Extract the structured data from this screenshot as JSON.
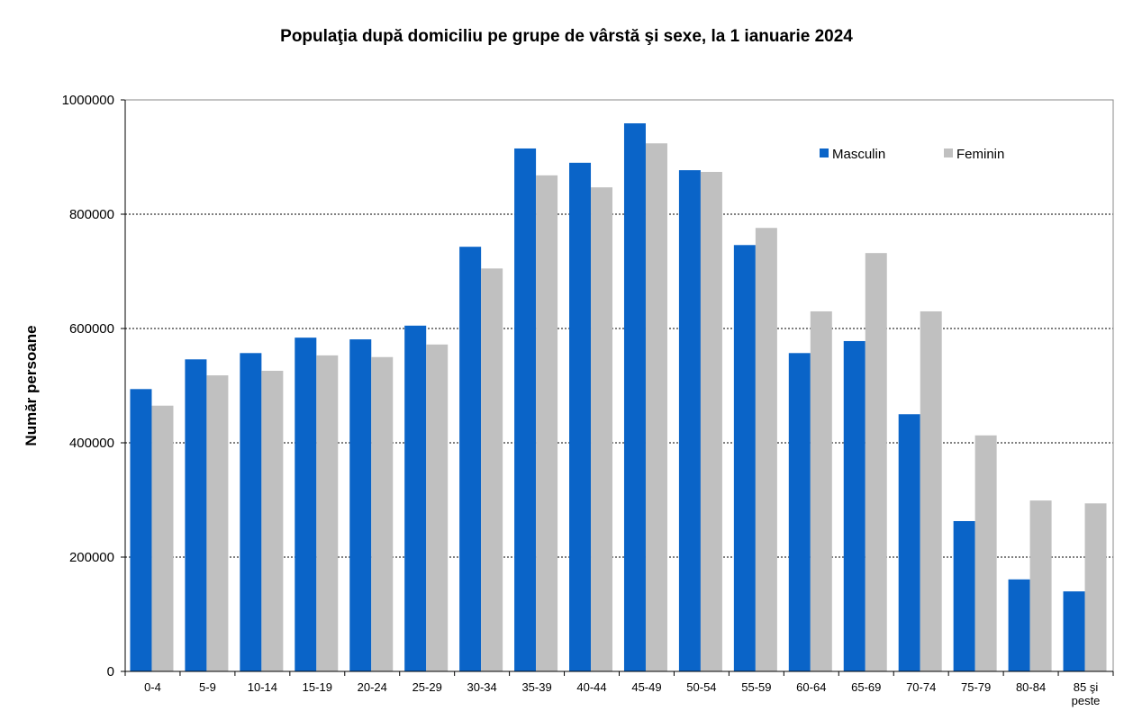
{
  "chart_data": {
    "type": "bar",
    "title": "Populaţia după domiciliu pe grupe de vârstă şi sexe, la 1 ianuarie 2024",
    "xlabel": "",
    "ylabel": "Număr persoane",
    "ylim": [
      0,
      1000000
    ],
    "yticks": [
      "0",
      "200000",
      "400000",
      "600000",
      "800000",
      "1000000"
    ],
    "grid": "horizontal dashed",
    "legend_position": "top-right",
    "categories": [
      "0-4",
      "5-9",
      "10-14",
      "15-19",
      "20-24",
      "25-29",
      "30-34",
      "35-39",
      "40-44",
      "45-49",
      "50-54",
      "55-59",
      "60-64",
      "65-69",
      "70-74",
      "75-79",
      "80-84",
      "85 şi peste"
    ],
    "series": [
      {
        "name": "Masculin",
        "color": "#0a64c8",
        "values": [
          494000,
          546000,
          557000,
          584000,
          581000,
          605000,
          743000,
          915000,
          890000,
          959000,
          877000,
          746000,
          557000,
          578000,
          450000,
          263000,
          161000,
          140000
        ]
      },
      {
        "name": "Feminin",
        "color": "#c0c0c0",
        "values": [
          465000,
          518000,
          526000,
          553000,
          550000,
          572000,
          705000,
          868000,
          847000,
          924000,
          874000,
          776000,
          630000,
          732000,
          630000,
          413000,
          299000,
          294000
        ]
      }
    ]
  }
}
